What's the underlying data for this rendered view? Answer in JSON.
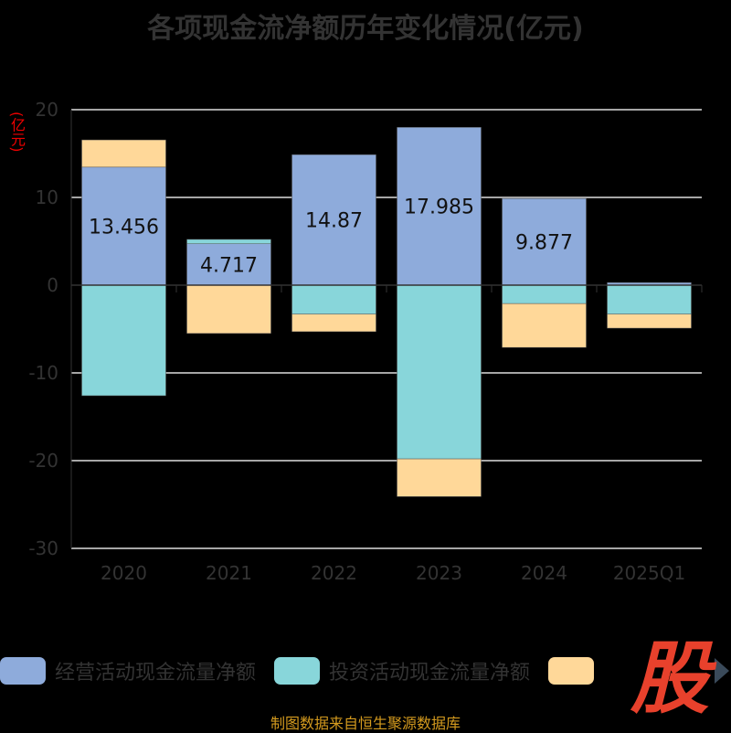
{
  "title": "各项现金流净额历年变化情况(亿元)",
  "unit_label": "(亿元)",
  "source": "制图数据来自恒生聚源数据库",
  "logo_text": "股",
  "chart_data": {
    "type": "bar",
    "stacked": true,
    "categories": [
      "2020",
      "2021",
      "2022",
      "2023",
      "2024",
      "2025Q1"
    ],
    "ylim": [
      -30,
      20
    ],
    "yticks": [
      -30,
      -20,
      -10,
      0,
      10,
      20
    ],
    "grid": true,
    "legend_position": "bottom",
    "series": [
      {
        "name": "经营活动现金流量净额",
        "color": "#8eabdb",
        "values": [
          13.456,
          4.717,
          14.87,
          17.985,
          9.877,
          0.3
        ],
        "labels": [
          "13.456",
          "4.717",
          "14.87",
          "17.985",
          "9.877",
          null
        ]
      },
      {
        "name": "投资活动现金流量净额",
        "color": "#88d6da",
        "values": [
          -12.6,
          0.5,
          -3.3,
          -19.8,
          -2.1,
          -3.3
        ]
      },
      {
        "name": "",
        "color": "#ffd899",
        "values": [
          3.1,
          -5.5,
          -2.0,
          -4.3,
          -5.0,
          -1.6
        ]
      }
    ]
  }
}
